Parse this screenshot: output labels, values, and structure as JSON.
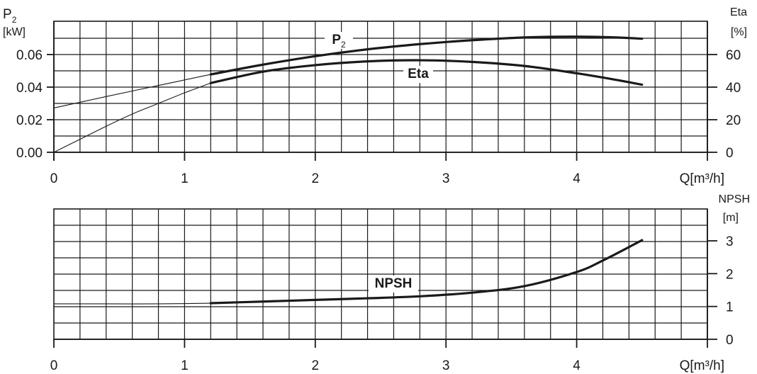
{
  "chart_data": [
    {
      "type": "line",
      "x_unit_label": "Q[m³/h]",
      "x_ticks": [
        "0",
        "1",
        "2",
        "3",
        "4"
      ],
      "xlim": [
        0,
        5
      ],
      "left_axis": {
        "label": "P2",
        "label_main": "P",
        "label_sub": "2",
        "unit": "[kW]",
        "ticks": [
          "0.00",
          "0.02",
          "0.04",
          "0.06"
        ],
        "ylim": [
          0,
          0.08
        ]
      },
      "right_axis": {
        "label": "Eta",
        "unit": "[%]",
        "ticks": [
          "0",
          "20",
          "40",
          "60"
        ],
        "ylim": [
          0,
          80
        ]
      },
      "grid": true,
      "series": [
        {
          "name": "P2",
          "label_main": "P",
          "label_sub": "2",
          "axis": "left",
          "thin_range": [
            0,
            1.2
          ],
          "x": [
            0,
            0.4,
            0.8,
            1.2,
            1.6,
            2.0,
            2.4,
            2.8,
            3.2,
            3.6,
            4.0,
            4.3,
            4.5
          ],
          "y": [
            0.0272,
            0.0342,
            0.041,
            0.0478,
            0.0538,
            0.059,
            0.0632,
            0.0664,
            0.0688,
            0.0705,
            0.071,
            0.0705,
            0.0697
          ]
        },
        {
          "name": "Eta",
          "axis": "right",
          "thin_range": [
            0,
            1.2
          ],
          "x": [
            0,
            0.2,
            0.4,
            0.6,
            0.8,
            1.0,
            1.2,
            1.6,
            2.0,
            2.4,
            2.8,
            3.2,
            3.6,
            4.0,
            4.3,
            4.5
          ],
          "y": [
            0,
            8,
            16,
            23.5,
            30,
            36.5,
            42.5,
            49.5,
            53.5,
            55.8,
            56.5,
            55.5,
            53,
            48.5,
            44.5,
            41.5
          ]
        }
      ]
    },
    {
      "type": "line",
      "x_unit_label": "Q[m³/h]",
      "x_ticks": [
        "0",
        "1",
        "2",
        "3",
        "4"
      ],
      "xlim": [
        0,
        5
      ],
      "right_axis": {
        "label": "NPSH",
        "unit": "[m]",
        "ticks": [
          "0",
          "1",
          "2",
          "3"
        ],
        "ylim": [
          0,
          4
        ]
      },
      "grid": true,
      "series": [
        {
          "name": "NPSH",
          "axis": "right",
          "thin_range": [
            0,
            1.2
          ],
          "x": [
            0,
            0.4,
            0.8,
            1.2,
            1.6,
            2.0,
            2.4,
            2.8,
            3.2,
            3.6,
            4.0,
            4.2,
            4.5
          ],
          "y": [
            1.08,
            1.08,
            1.08,
            1.1,
            1.15,
            1.2,
            1.25,
            1.31,
            1.42,
            1.62,
            2.05,
            2.4,
            3.02
          ]
        }
      ]
    }
  ]
}
